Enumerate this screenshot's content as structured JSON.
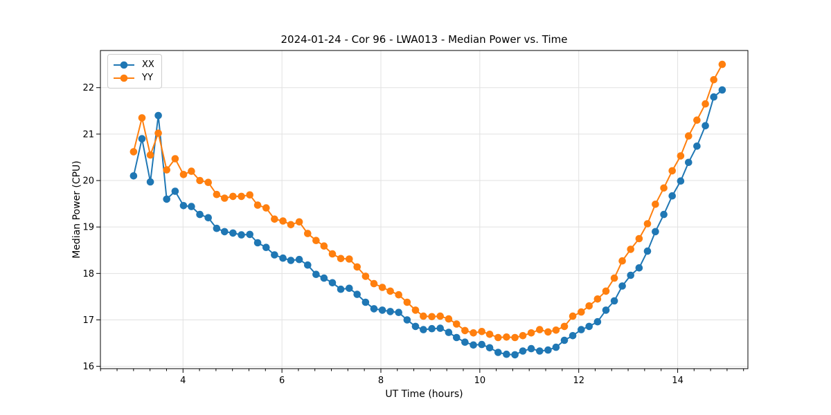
{
  "title": "2024-01-24 - Cor 96 - LWA013 - Median Power vs. Time",
  "axes": {
    "xlabel": "UT Time (hours)",
    "ylabel": "Median Power (CPU)"
  },
  "legend": {
    "items": [
      {
        "label": "XX",
        "color": "#1f77b4"
      },
      {
        "label": "YY",
        "color": "#ff7f0e"
      }
    ]
  },
  "colors": {
    "series_xx": "#1f77b4",
    "series_yy": "#ff7f0e",
    "grid": "#e1e1e1",
    "spine": "#000000",
    "background": "#ffffff"
  },
  "chart_data": {
    "type": "line",
    "title": "2024-01-24 - Cor 96 - LWA013 - Median Power vs. Time",
    "xlabel": "UT Time (hours)",
    "ylabel": "Median Power (CPU)",
    "xlim": [
      2.33,
      15.42
    ],
    "ylim": [
      15.95,
      22.8
    ],
    "xticks": [
      4,
      6,
      8,
      10,
      12,
      14
    ],
    "yticks": [
      16,
      17,
      18,
      19,
      20,
      21,
      22
    ],
    "x_minor_step": 0.3333,
    "grid": true,
    "legend_position": "upper left",
    "marker": "o",
    "x": [
      3.0,
      3.17,
      3.34,
      3.5,
      3.67,
      3.84,
      4.01,
      4.17,
      4.34,
      4.51,
      4.68,
      4.84,
      5.01,
      5.18,
      5.35,
      5.51,
      5.68,
      5.85,
      6.02,
      6.18,
      6.35,
      6.52,
      6.69,
      6.85,
      7.02,
      7.19,
      7.36,
      7.52,
      7.69,
      7.86,
      8.03,
      8.19,
      8.36,
      8.53,
      8.7,
      8.86,
      9.03,
      9.2,
      9.37,
      9.53,
      9.7,
      9.87,
      10.04,
      10.2,
      10.37,
      10.54,
      10.71,
      10.87,
      11.04,
      11.21,
      11.38,
      11.54,
      11.71,
      11.88,
      12.05,
      12.21,
      12.38,
      12.55,
      12.72,
      12.88,
      13.05,
      13.22,
      13.39,
      13.55,
      13.72,
      13.89,
      14.06,
      14.22,
      14.39,
      14.56,
      14.73,
      14.9
    ],
    "series": [
      {
        "name": "XX",
        "color": "#1f77b4",
        "values": [
          20.1,
          20.9,
          19.97,
          21.4,
          19.6,
          19.77,
          19.46,
          19.44,
          19.27,
          19.2,
          18.97,
          18.9,
          18.87,
          18.83,
          18.84,
          18.66,
          18.56,
          18.4,
          18.33,
          18.28,
          18.3,
          18.18,
          17.98,
          17.9,
          17.8,
          17.66,
          17.68,
          17.55,
          17.38,
          17.24,
          17.21,
          17.18,
          17.16,
          17.0,
          16.86,
          16.79,
          16.81,
          16.82,
          16.73,
          16.62,
          16.52,
          16.46,
          16.47,
          16.4,
          16.3,
          16.26,
          16.25,
          16.33,
          16.38,
          16.33,
          16.35,
          16.41,
          16.56,
          16.66,
          16.79,
          16.86,
          16.96,
          17.21,
          17.41,
          17.73,
          17.96,
          18.12,
          18.48,
          18.9,
          19.27,
          19.67,
          19.99,
          20.39,
          20.74,
          21.18,
          21.8,
          21.95
        ]
      },
      {
        "name": "YY",
        "color": "#ff7f0e",
        "values": [
          20.62,
          21.35,
          20.55,
          21.02,
          20.23,
          20.47,
          20.13,
          20.2,
          20.0,
          19.96,
          19.7,
          19.62,
          19.66,
          19.66,
          19.69,
          19.47,
          19.41,
          19.17,
          19.13,
          19.05,
          19.11,
          18.86,
          18.71,
          18.59,
          18.42,
          18.32,
          18.31,
          18.14,
          17.94,
          17.78,
          17.7,
          17.62,
          17.54,
          17.38,
          17.21,
          17.08,
          17.07,
          17.08,
          17.02,
          16.91,
          16.77,
          16.72,
          16.75,
          16.69,
          16.62,
          16.63,
          16.62,
          16.66,
          16.72,
          16.79,
          16.74,
          16.78,
          16.86,
          17.08,
          17.17,
          17.3,
          17.45,
          17.62,
          17.9,
          18.27,
          18.52,
          18.75,
          19.07,
          19.49,
          19.84,
          20.21,
          20.53,
          20.96,
          21.3,
          21.65,
          22.17,
          22.5
        ]
      }
    ]
  }
}
